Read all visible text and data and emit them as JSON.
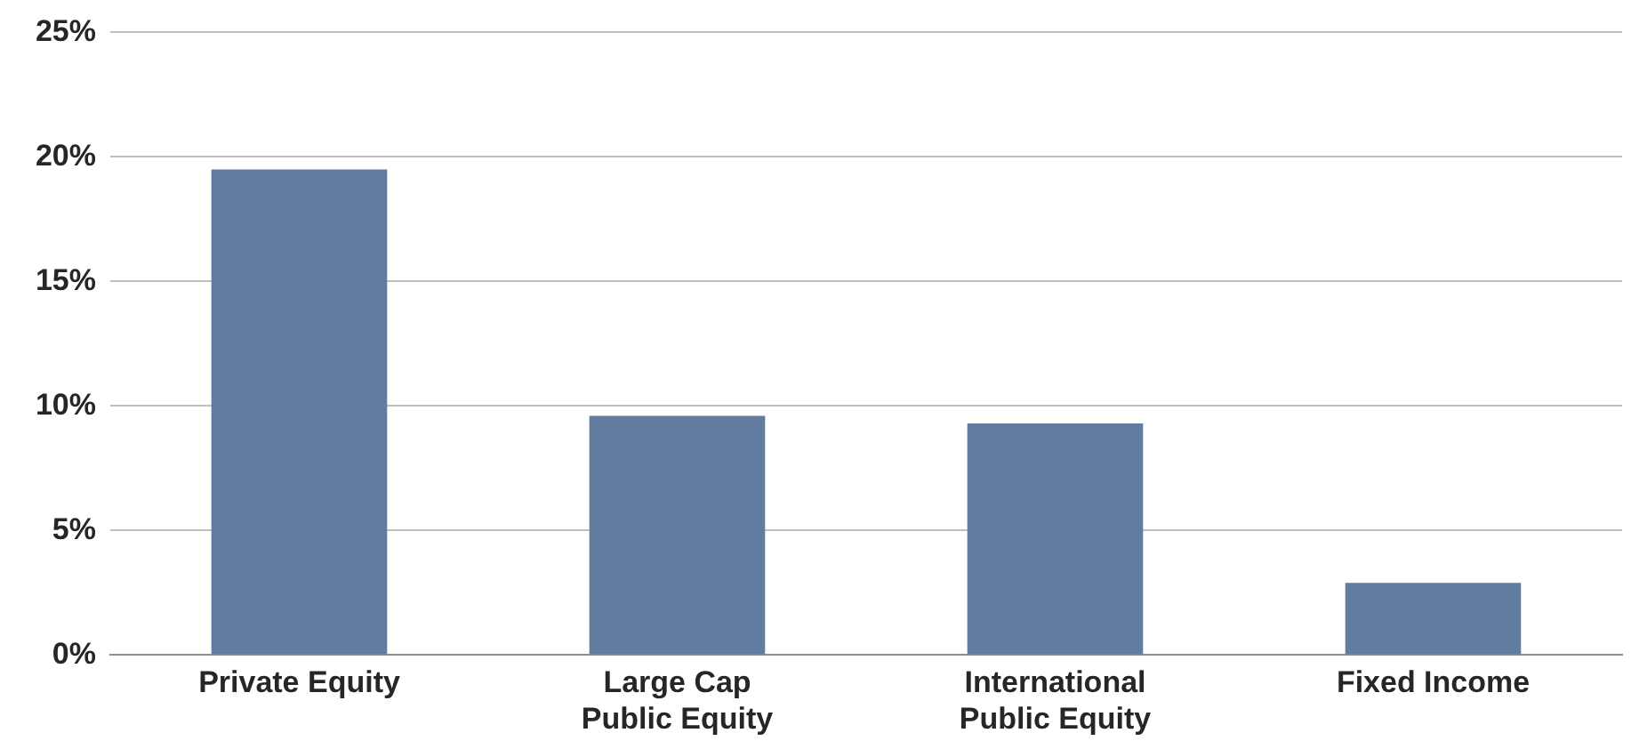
{
  "chart_data": {
    "type": "bar",
    "categories": [
      "Private Equity",
      "Large Cap Public Equity",
      "International Public Equity",
      "Fixed Income"
    ],
    "values": [
      19.5,
      9.6,
      9.3,
      2.9
    ],
    "color": "#627c9f",
    "ylim": [
      0,
      25
    ],
    "yticks": [
      {
        "value": 0,
        "label": "0%"
      },
      {
        "value": 5,
        "label": "5%"
      },
      {
        "value": 10,
        "label": "10%"
      },
      {
        "value": 15,
        "label": "15%"
      },
      {
        "value": 20,
        "label": "20%"
      },
      {
        "value": 25,
        "label": "25%"
      }
    ],
    "grid": "y",
    "legend": false
  }
}
